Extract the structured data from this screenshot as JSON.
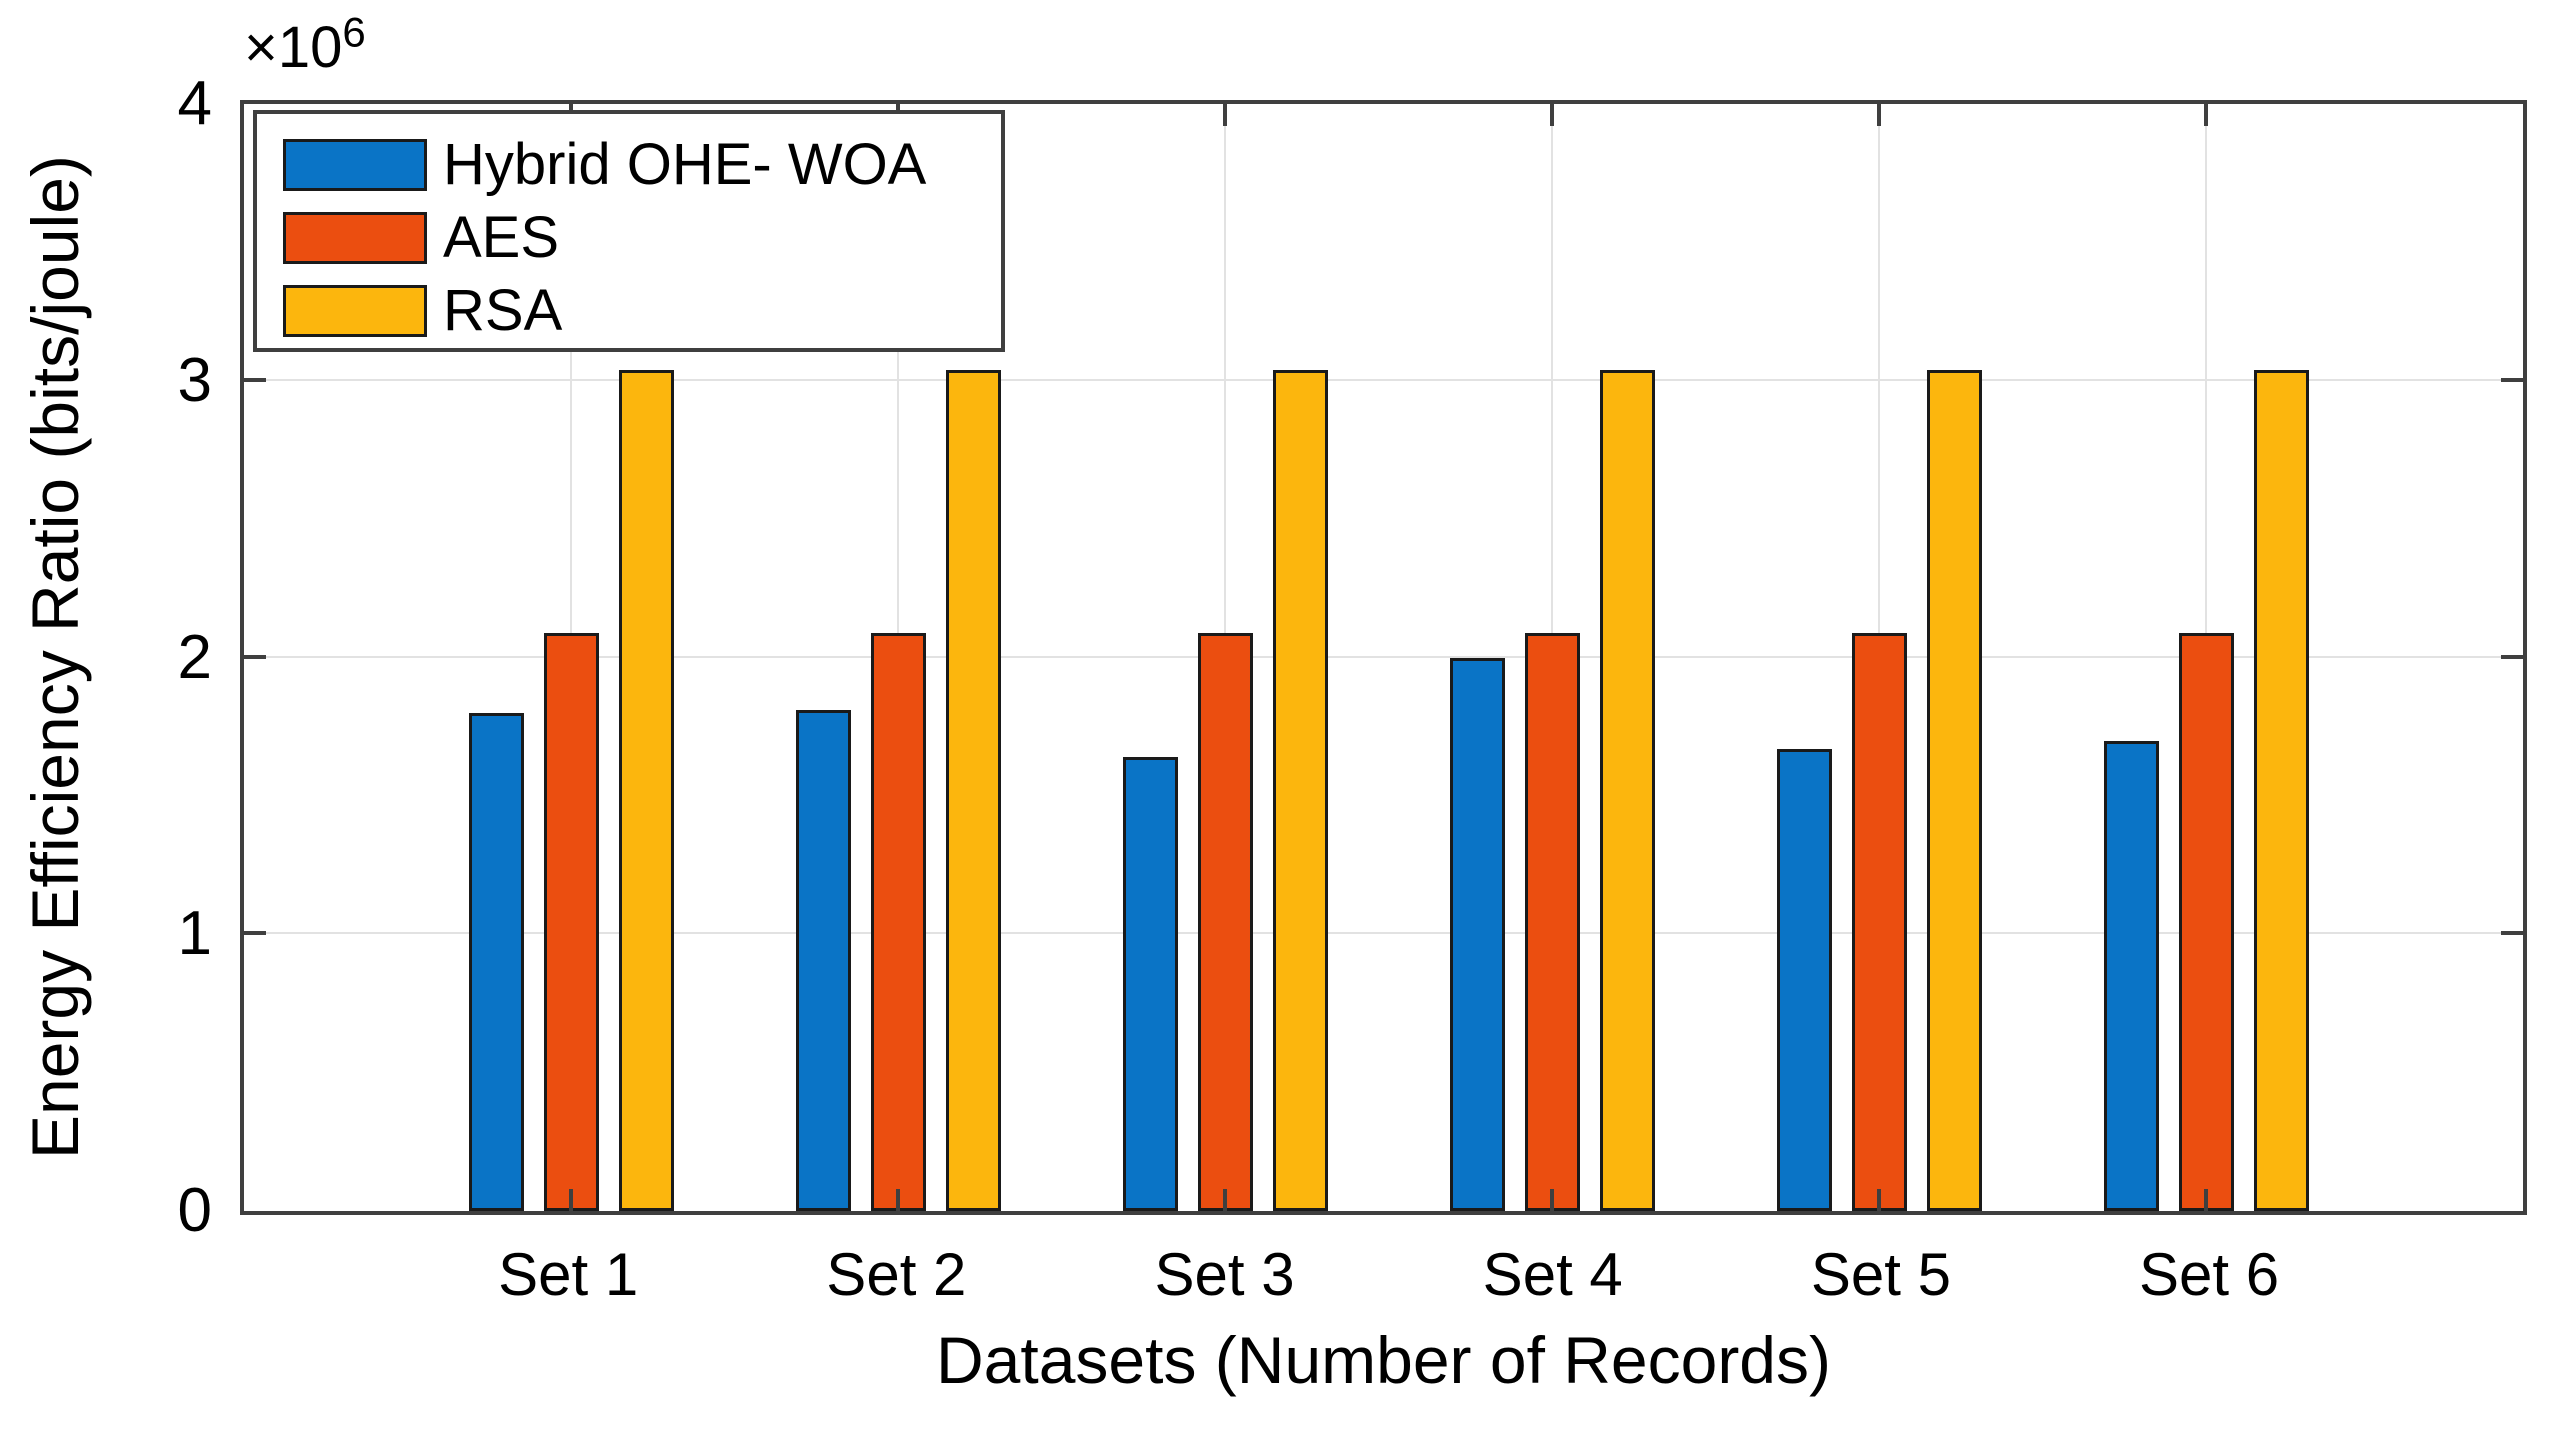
{
  "chart_data": {
    "type": "bar",
    "title": "",
    "categories": [
      "Set 1",
      "Set 2",
      "Set 3",
      "Set 4",
      "Set 5",
      "Set 6"
    ],
    "series": [
      {
        "name": "Hybrid OHE- WOA",
        "color": "#0A74C6",
        "values": [
          1.8,
          1.81,
          1.64,
          2.0,
          1.67,
          1.7
        ]
      },
      {
        "name": "AES",
        "color": "#EB4E10",
        "values": [
          2.09,
          2.09,
          2.09,
          2.09,
          2.09,
          2.09
        ]
      },
      {
        "name": "RSA",
        "color": "#FCB60D",
        "values": [
          3.04,
          3.04,
          3.04,
          3.04,
          3.04,
          3.04
        ]
      }
    ],
    "values_scale": 1000000,
    "scale_prefix": "×10",
    "scale_exponent": "6",
    "xlabel": "Datasets (Number of Records)",
    "ylabel": "Energy Efficiency Ratio (bits/joule)",
    "ylim": [
      0,
      4
    ],
    "yticks": [
      0,
      1,
      2,
      3,
      4
    ],
    "grid": true,
    "legend_position": "top-left"
  },
  "colors": {
    "axis": "#3F3F3F",
    "grid": "#E2E2E2",
    "bar_edge": "#1A1A1A",
    "text": "#000000",
    "background": "#FFFFFF"
  }
}
